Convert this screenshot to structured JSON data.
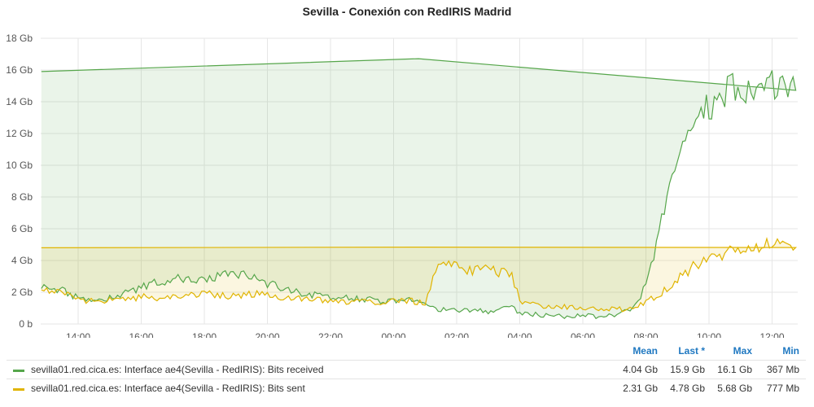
{
  "title": "Sevilla - Conexión con RedIRIS Madrid",
  "colors": {
    "received": "#56a64b",
    "sent": "#e0b400",
    "grid": "#e6e6e6"
  },
  "legend": {
    "headers": [
      "Mean",
      "Last *",
      "Max",
      "Min"
    ],
    "rows": [
      {
        "name": "sevilla01.red.cica.es: Interface ae4(Sevilla - RedIRIS): Bits received",
        "color": "#56a64b",
        "mean": "4.04 Gb",
        "last": "15.9 Gb",
        "max": "16.1 Gb",
        "min": "367 Mb"
      },
      {
        "name": "sevilla01.red.cica.es: Interface ae4(Sevilla - RedIRIS): Bits sent",
        "color": "#e0b400",
        "mean": "2.31 Gb",
        "last": "4.78 Gb",
        "max": "5.68 Gb",
        "min": "777 Mb"
      }
    ]
  },
  "chart_data": {
    "type": "area",
    "title": "Sevilla - Conexión con RedIRIS Madrid",
    "xlabel": "",
    "ylabel": "",
    "x_ticks": [
      "14:00",
      "16:00",
      "18:00",
      "20:00",
      "22:00",
      "00:00",
      "02:00",
      "04:00",
      "06:00",
      "08:00",
      "10:00",
      "12:00"
    ],
    "y_ticks": [
      "0 b",
      "2 Gb",
      "4 Gb",
      "6 Gb",
      "8 Gb",
      "10 Gb",
      "12 Gb",
      "14 Gb",
      "16 Gb",
      "18 Gb"
    ],
    "ylim": [
      0,
      18
    ],
    "y_unit": "Gb",
    "grid": true,
    "x": [
      "12:50",
      "13:00",
      "13:30",
      "14:00",
      "14:30",
      "15:00",
      "15:30",
      "16:00",
      "16:30",
      "17:00",
      "17:30",
      "18:00",
      "18:30",
      "19:00",
      "19:30",
      "20:00",
      "20:30",
      "21:00",
      "21:30",
      "22:00",
      "22:30",
      "23:00",
      "23:30",
      "00:00",
      "00:30",
      "01:00",
      "01:15",
      "01:30",
      "02:00",
      "02:30",
      "03:00",
      "03:30",
      "03:45",
      "04:00",
      "04:30",
      "05:00",
      "05:30",
      "06:00",
      "06:30",
      "07:00",
      "07:30",
      "07:45",
      "08:00",
      "08:15",
      "08:30",
      "08:45",
      "09:00",
      "09:15",
      "09:30",
      "09:45",
      "10:00",
      "10:15",
      "10:30",
      "10:45",
      "11:00",
      "11:30",
      "12:00",
      "12:30",
      "12:45",
      "12:50"
    ],
    "series": [
      {
        "name": "sevilla01.red.cica.es: Interface ae4(Sevilla - RedIRIS): Bits received",
        "values": [
          2.4,
          2.3,
          2.1,
          1.6,
          1.4,
          1.6,
          2.0,
          2.3,
          2.6,
          2.8,
          2.9,
          2.7,
          3.0,
          3.2,
          2.9,
          2.5,
          2.3,
          2.0,
          1.8,
          1.7,
          1.6,
          1.6,
          1.5,
          1.4,
          1.5,
          1.5,
          1.0,
          0.9,
          0.8,
          0.9,
          0.8,
          1.0,
          1.1,
          0.7,
          0.6,
          0.5,
          0.5,
          0.6,
          0.4,
          0.6,
          0.9,
          1.3,
          2.5,
          4.2,
          6.5,
          8.5,
          10.0,
          11.5,
          13.0,
          13.8,
          13.5,
          14.2,
          14.6,
          14.8,
          14.9,
          15.0,
          15.2,
          15.0,
          15.5,
          15.9
        ]
      },
      {
        "name": "sevilla01.red.cica.es: Interface ae4(Sevilla - RedIRIS): Bits sent",
        "values": [
          2.4,
          2.2,
          2.0,
          1.6,
          1.4,
          1.5,
          1.6,
          1.7,
          1.6,
          1.7,
          1.8,
          1.9,
          1.8,
          1.7,
          1.9,
          1.8,
          1.7,
          1.6,
          1.5,
          1.5,
          1.4,
          1.4,
          1.3,
          1.4,
          1.5,
          1.3,
          3.0,
          3.9,
          3.6,
          3.4,
          3.4,
          3.2,
          3.0,
          1.5,
          1.2,
          1.0,
          1.1,
          1.0,
          1.0,
          0.9,
          1.0,
          1.1,
          1.4,
          1.7,
          2.0,
          2.4,
          2.8,
          3.2,
          3.6,
          3.9,
          4.1,
          4.3,
          4.4,
          4.6,
          4.7,
          4.9,
          5.1,
          5.0,
          4.9,
          4.8
        ]
      }
    ]
  }
}
